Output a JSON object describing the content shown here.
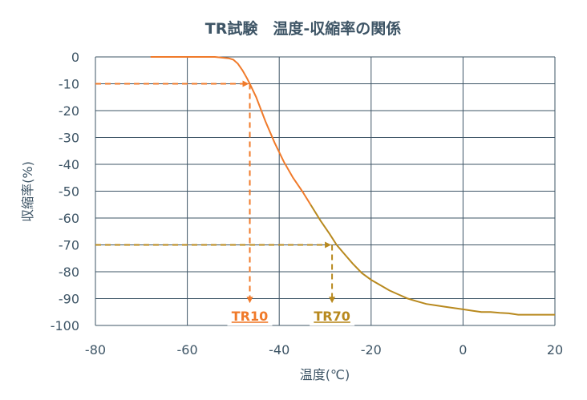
{
  "chart_data": {
    "type": "line",
    "title": "TR試験　温度-収縮率の関係",
    "xlabel": "温度(℃)",
    "ylabel": "収縮率(%)",
    "xlim": [
      -80,
      20
    ],
    "ylim": [
      -100,
      0
    ],
    "x_ticks": [
      -80,
      -60,
      -40,
      -20,
      0,
      20
    ],
    "y_ticks": [
      0,
      -10,
      -20,
      -30,
      -40,
      -50,
      -60,
      -70,
      -80,
      -90,
      -100
    ],
    "x_tick_labels": [
      "-80",
      "-60",
      "-40",
      "-20",
      "0",
      "20"
    ],
    "y_tick_labels": [
      "0",
      "-10",
      "-20",
      "-30",
      "-40",
      "-50",
      "-60",
      "-70",
      "-80",
      "-90",
      "-100"
    ],
    "grid": true,
    "colors": {
      "tr10": "#f07a2a",
      "tr70": "#b8891e",
      "grid": "#3e5566",
      "text": "#3e5566"
    },
    "series": [
      {
        "points": [
          [
            -68,
            0
          ],
          [
            -60,
            0
          ],
          [
            -54,
            0
          ],
          [
            -51,
            -0.5
          ],
          [
            -50,
            -1
          ],
          [
            -49,
            -2.5
          ],
          [
            -48,
            -5
          ],
          [
            -47,
            -8
          ],
          [
            -46.4,
            -10
          ],
          [
            -45,
            -15
          ],
          [
            -43,
            -24
          ],
          [
            -41,
            -32
          ],
          [
            -39,
            -39
          ],
          [
            -37,
            -45
          ],
          [
            -35,
            -50
          ],
          [
            -33,
            -55.5
          ],
          [
            -31,
            -61
          ],
          [
            -29,
            -66
          ],
          [
            -27.5,
            -70
          ],
          [
            -26,
            -73
          ],
          [
            -24,
            -77
          ],
          [
            -22,
            -80.5
          ],
          [
            -20,
            -83
          ],
          [
            -18,
            -85
          ],
          [
            -16,
            -87
          ],
          [
            -14,
            -88.5
          ],
          [
            -12,
            -90
          ],
          [
            -10,
            -91
          ],
          [
            -8,
            -92
          ],
          [
            -6,
            -92.5
          ],
          [
            -4,
            -93
          ],
          [
            -2,
            -93.5
          ],
          [
            0,
            -94
          ],
          [
            2,
            -94.5
          ],
          [
            4,
            -95
          ],
          [
            6,
            -95
          ],
          [
            8,
            -95.3
          ],
          [
            10,
            -95.5
          ],
          [
            12,
            -96
          ],
          [
            14,
            -96
          ],
          [
            16,
            -96
          ],
          [
            18,
            -96
          ],
          [
            20,
            -96
          ]
        ]
      }
    ],
    "annotations": [
      {
        "label": "TR10",
        "x": -46.4,
        "y": -10,
        "color": "#f07a2a"
      },
      {
        "label": "TR70",
        "x": -28.5,
        "y": -70,
        "color": "#b8891e"
      }
    ],
    "annotation_marker_y": -92
  }
}
